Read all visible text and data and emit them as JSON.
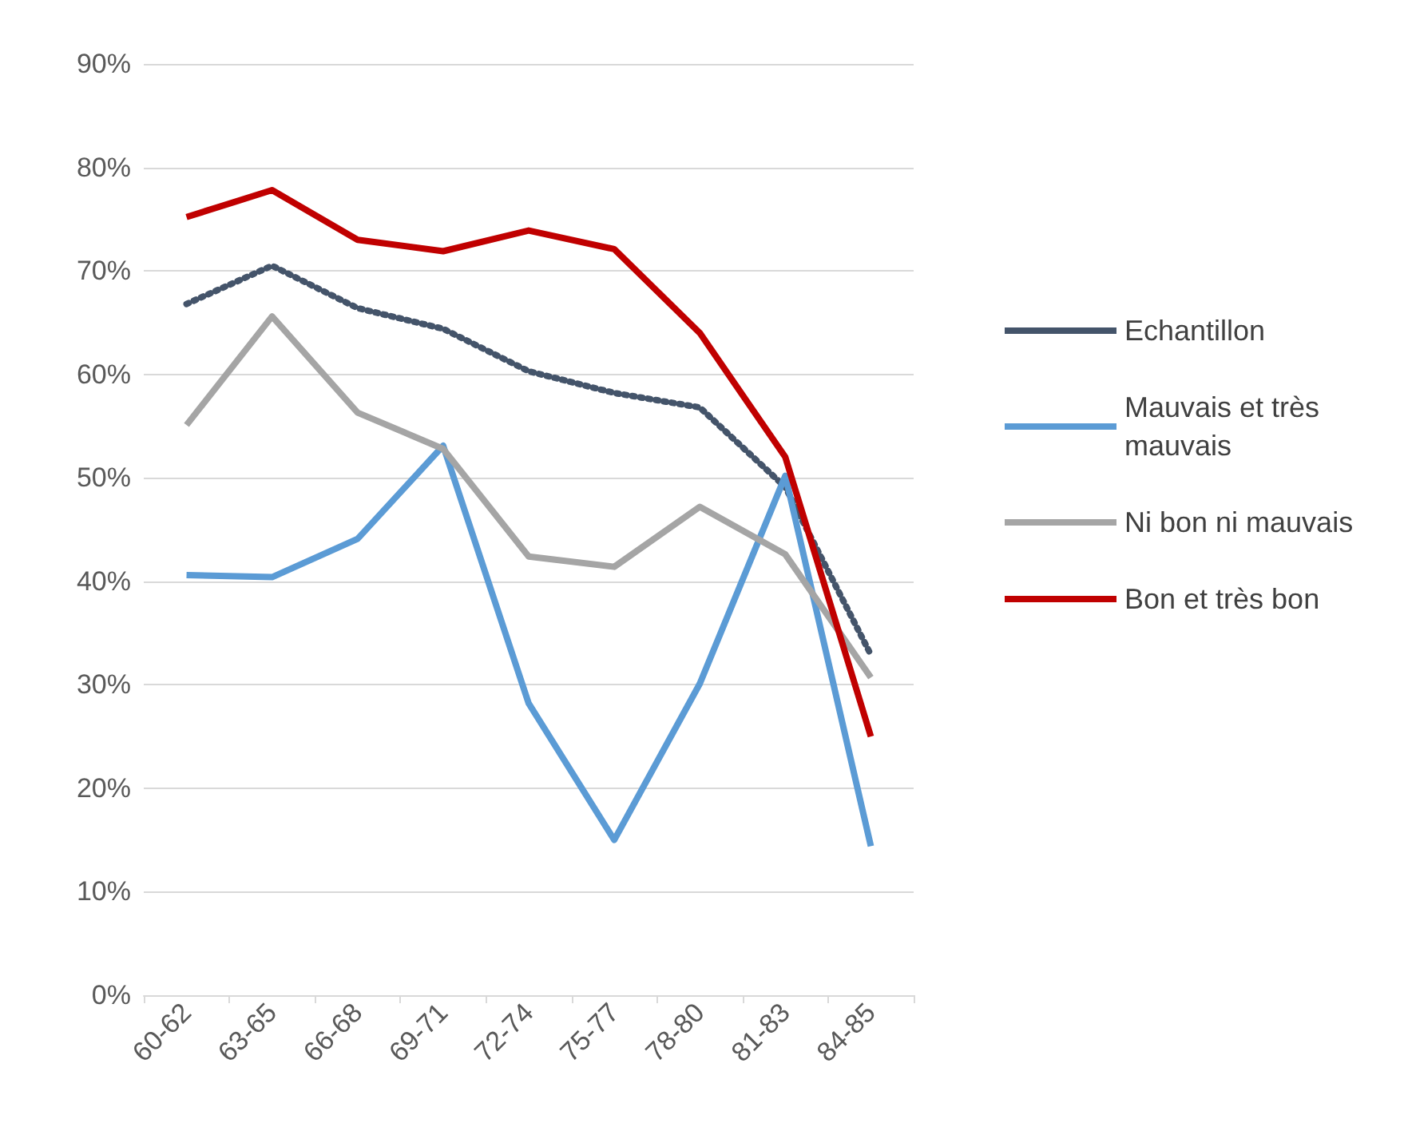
{
  "chart_data": {
    "type": "line",
    "categories": [
      "60-62",
      "63-65",
      "66-68",
      "69-71",
      "72-74",
      "75-77",
      "78-80",
      "81-83",
      "84-85"
    ],
    "series": [
      {
        "name": "Echantillon",
        "color": "#44546a",
        "line_style": "dotted",
        "values": [
          66.8,
          70.5,
          66.4,
          64.4,
          60.3,
          58.2,
          56.8,
          49.1,
          32.9
        ]
      },
      {
        "name": "Mauvais et très mauvais",
        "color": "#5b9bd5",
        "values": [
          40.6,
          40.4,
          44.1,
          53.1,
          28.2,
          15.0,
          30.1,
          50.2,
          14.4
        ]
      },
      {
        "name": "Ni bon ni mauvais",
        "color": "#a5a5a5",
        "values": [
          55.1,
          65.6,
          56.3,
          52.8,
          42.4,
          41.4,
          47.2,
          42.6,
          30.7
        ]
      },
      {
        "name": "Bon et très bon",
        "color": "#c00000",
        "values": [
          75.2,
          77.8,
          73.0,
          71.9,
          73.9,
          72.1,
          64.0,
          52.0,
          25.0
        ]
      }
    ],
    "ylim": [
      0,
      90
    ],
    "yticks": [
      {
        "value": 0,
        "label": "0%"
      },
      {
        "value": 10,
        "label": "10%"
      },
      {
        "value": 20,
        "label": "20%"
      },
      {
        "value": 30,
        "label": "30%"
      },
      {
        "value": 40,
        "label": "40%"
      },
      {
        "value": 50,
        "label": "50%"
      },
      {
        "value": 60,
        "label": "60%"
      },
      {
        "value": 70,
        "label": "70%"
      },
      {
        "value": 80,
        "label": "80%"
      },
      {
        "value": 90,
        "label": "90%"
      }
    ],
    "grid": "y",
    "legend": "right",
    "marker": "none",
    "line_style": "solid"
  }
}
